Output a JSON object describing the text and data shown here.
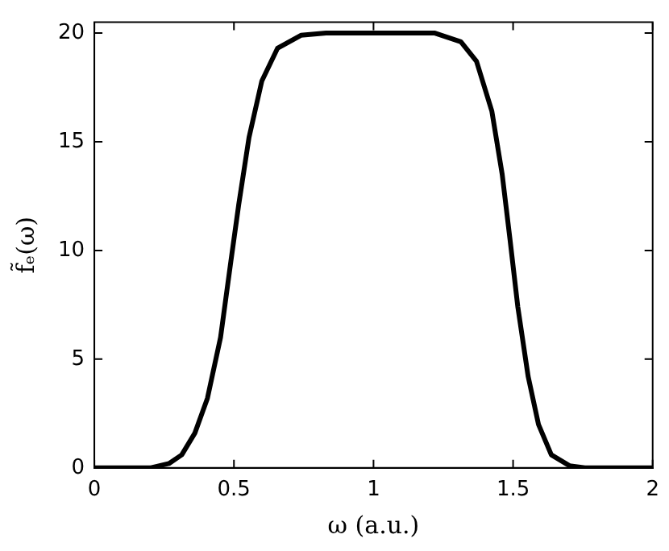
{
  "chart_data": {
    "type": "line",
    "xlabel": "ω (a.u.)",
    "ylabel": "f̃ₑ(ω)",
    "series": [
      {
        "color": "#000000",
        "x": [
          0,
          0.2,
          0.267,
          0.313,
          0.36,
          0.405,
          0.452,
          0.489,
          0.517,
          0.554,
          0.6,
          0.656,
          0.74,
          0.83,
          1.22,
          1.313,
          1.369,
          1.424,
          1.461,
          1.489,
          1.517,
          1.554,
          1.591,
          1.637,
          1.702,
          1.757,
          2
        ],
        "values": [
          0,
          0,
          0.2,
          0.6,
          1.6,
          3.2,
          6,
          9.5,
          12.1,
          15.2,
          17.8,
          19.3,
          19.9,
          20,
          20,
          19.6,
          18.7,
          16.4,
          13.5,
          10.5,
          7.4,
          4.2,
          2,
          0.6,
          0.1,
          0,
          0
        ]
      }
    ],
    "xlim": [
      0,
      2
    ],
    "xticks": [
      0,
      0.5,
      1,
      1.5,
      2
    ],
    "ylim": [
      0,
      20.5
    ],
    "yticks": [
      0,
      5,
      10,
      15,
      20
    ],
    "grid": false,
    "legend": false,
    "marker": "none",
    "line_style": "solid"
  }
}
